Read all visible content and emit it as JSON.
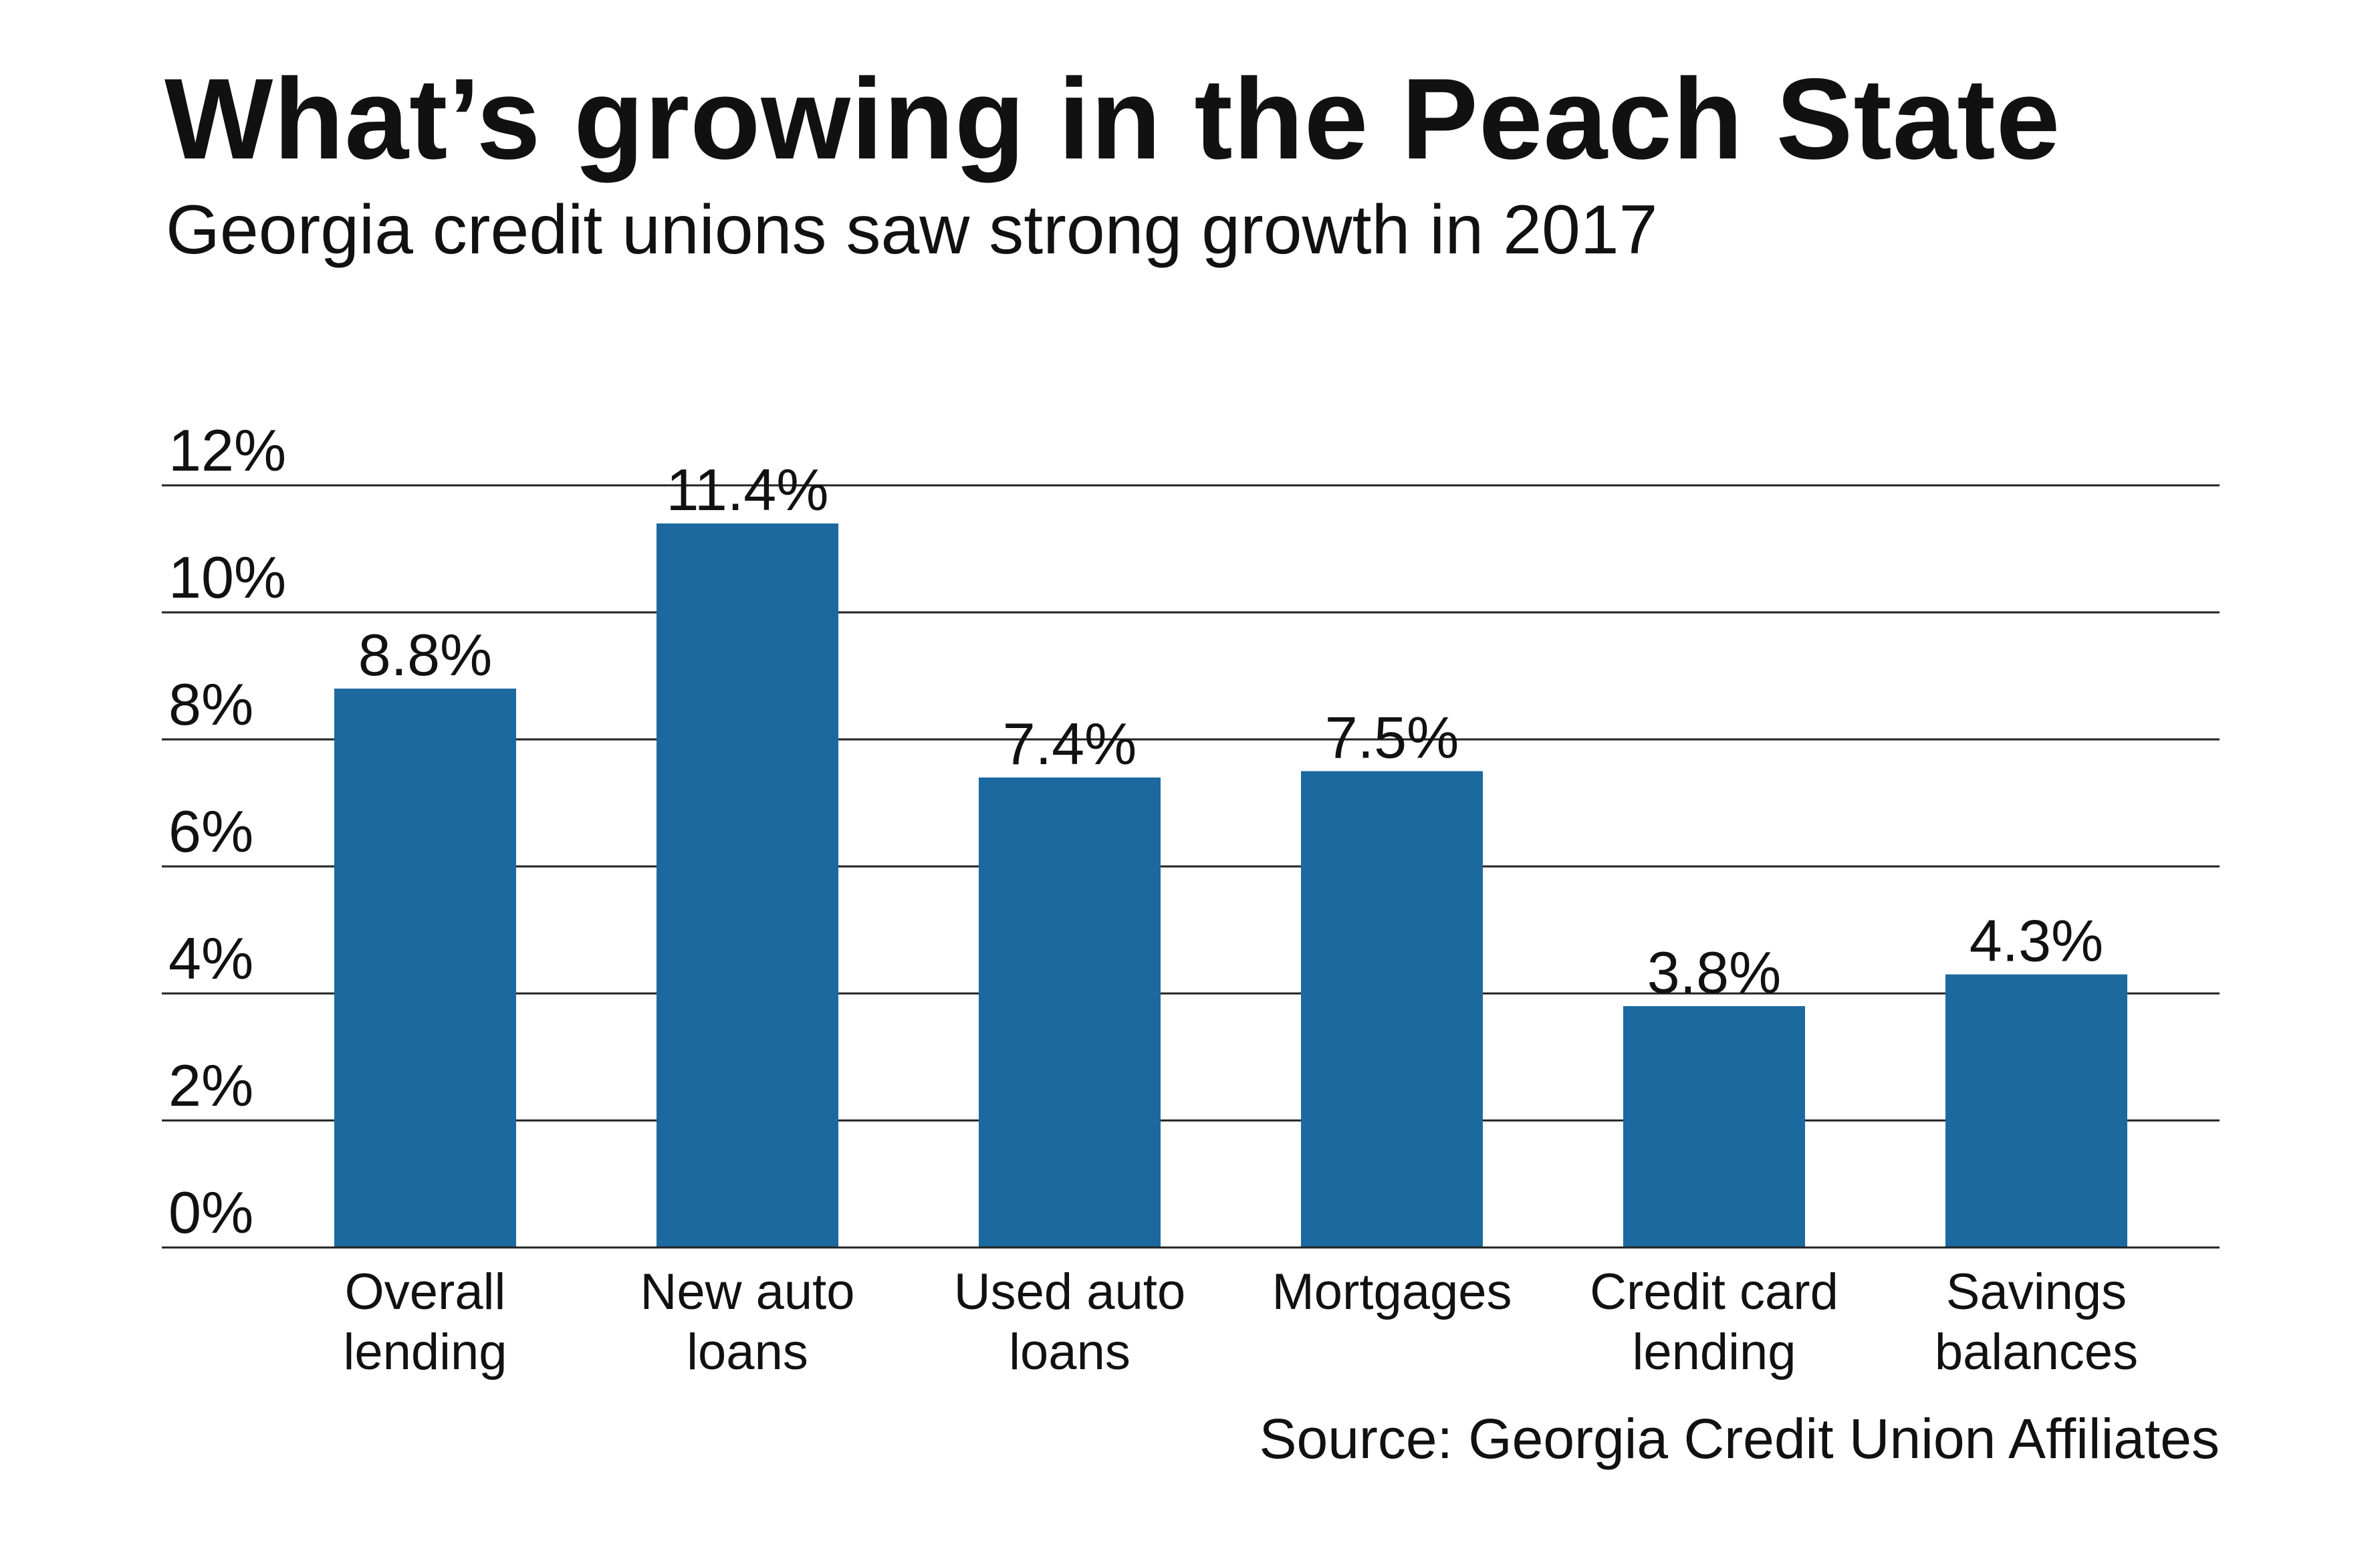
{
  "chart_data": {
    "type": "bar",
    "title": "What’s growing in the Peach State",
    "subtitle": "Georgia credit unions saw strong growth in 2017",
    "categories": [
      [
        "Overall",
        "lending"
      ],
      [
        "New auto",
        "loans"
      ],
      [
        "Used auto",
        "loans"
      ],
      [
        "Mortgages"
      ],
      [
        "Credit card",
        "lending"
      ],
      [
        "Savings",
        "balances"
      ]
    ],
    "values": [
      8.8,
      11.4,
      7.4,
      7.5,
      3.8,
      4.3
    ],
    "data_labels": [
      "8.8%",
      "11.4%",
      "7.4%",
      "7.5%",
      "3.8%",
      "4.3%"
    ],
    "yticks": [
      0,
      2,
      4,
      6,
      8,
      10,
      12
    ],
    "ytick_labels": [
      "0%",
      "2%",
      "4%",
      "6%",
      "8%",
      "10%",
      "12%"
    ],
    "ylim": [
      0,
      12
    ],
    "xlabel": "",
    "ylabel": "",
    "grid": true,
    "bar_color": "#1c69a0",
    "source": "Source: Georgia Credit Union Affiliates"
  }
}
